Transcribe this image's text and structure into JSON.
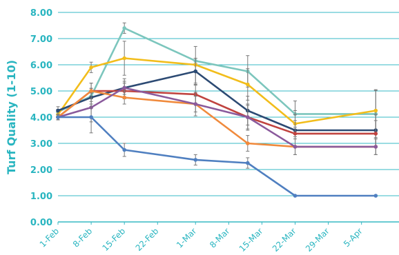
{
  "chart_data": {
    "type": "line",
    "title": "",
    "xlabel": "",
    "ylabel": "Turf Quality (1-10)",
    "ylim": [
      0,
      8
    ],
    "y_ticks": [
      "0.00",
      "1.00",
      "2.00",
      "3.00",
      "4.00",
      "5.00",
      "6.00",
      "7.00",
      "8.00"
    ],
    "grid": true,
    "legend": "none",
    "categories": [
      "1-Feb",
      "8-Feb",
      "15-Feb",
      "22-Feb",
      "1-Mar",
      "8-Mar",
      "15-Mar",
      "22-Mar",
      "29-Mar",
      "5-Apr"
    ],
    "series": [
      {
        "color": "#7cc6bd",
        "points": [
          [
            "1-Feb",
            4.2
          ],
          [
            "8-Feb",
            4.8
          ],
          [
            "15-Feb",
            7.4
          ],
          [
            "1-Mar",
            6.15
          ],
          [
            "12-Mar",
            5.75
          ],
          [
            "22-Mar",
            4.12
          ],
          [
            "8-Apr",
            4.12
          ]
        ],
        "errors": [
          0.1,
          0.3,
          0.2,
          0.1,
          0.6,
          0.5,
          0.9
        ]
      },
      {
        "color": "#f2bd1b",
        "points": [
          [
            "1-Feb",
            4.1
          ],
          [
            "8-Feb",
            5.9
          ],
          [
            "15-Feb",
            6.25
          ],
          [
            "1-Mar",
            6.0
          ],
          [
            "12-Mar",
            5.25
          ],
          [
            "22-Mar",
            3.75
          ],
          [
            "8-Apr",
            4.25
          ]
        ],
        "errors": [
          0.1,
          0.2,
          0.65,
          0.7,
          0.6,
          0.5,
          0.8
        ]
      },
      {
        "color": "#2c4a73",
        "points": [
          [
            "1-Feb",
            4.25
          ],
          [
            "8-Feb",
            4.75
          ],
          [
            "15-Feb",
            5.12
          ],
          [
            "1-Mar",
            5.75
          ],
          [
            "12-Mar",
            4.25
          ],
          [
            "22-Mar",
            3.5
          ],
          [
            "8-Apr",
            3.5
          ]
        ],
        "errors": [
          0.15,
          0.35,
          0.35,
          0.5,
          0.55,
          0.6,
          0.6
        ]
      },
      {
        "color": "#c0433f",
        "points": [
          [
            "1-Feb",
            4.0
          ],
          [
            "8-Feb",
            5.0
          ],
          [
            "15-Feb",
            5.0
          ],
          [
            "1-Mar",
            4.87
          ],
          [
            "12-Mar",
            4.0
          ],
          [
            "22-Mar",
            3.37
          ],
          [
            "8-Apr",
            3.37
          ]
        ],
        "errors": [
          0.1,
          0.3,
          0.3,
          0.35,
          0.45,
          0.5,
          0.5
        ]
      },
      {
        "color": "#f08a3c",
        "points": [
          [
            "1-Feb",
            4.0
          ],
          [
            "8-Feb",
            5.0
          ],
          [
            "15-Feb",
            4.75
          ],
          [
            "1-Mar",
            4.5
          ],
          [
            "12-Mar",
            3.0
          ],
          [
            "22-Mar",
            2.87
          ],
          [
            "8-Apr",
            2.87
          ]
        ],
        "errors": [
          0.1,
          0.3,
          0.25,
          0.45,
          0.3,
          0.3,
          0.3
        ]
      },
      {
        "color": "#8a5a9c",
        "points": [
          [
            "1-Feb",
            4.0
          ],
          [
            "8-Feb",
            4.37
          ],
          [
            "15-Feb",
            5.12
          ],
          [
            "1-Mar",
            4.5
          ],
          [
            "12-Mar",
            4.0
          ],
          [
            "22-Mar",
            2.87
          ],
          [
            "8-Apr",
            2.87
          ]
        ],
        "errors": [
          0.1,
          0.55,
          0.25,
          0.3,
          0.5,
          0.3,
          0.3
        ]
      },
      {
        "color": "#4f7fc0",
        "points": [
          [
            "1-Feb",
            4.0
          ],
          [
            "8-Feb",
            4.0
          ],
          [
            "15-Feb",
            2.75
          ],
          [
            "1-Mar",
            2.37
          ],
          [
            "12-Mar",
            2.25
          ],
          [
            "22-Mar",
            1.0
          ],
          [
            "8-Apr",
            1.0
          ]
        ],
        "errors": [
          0.1,
          0.6,
          0.25,
          0.2,
          0.2,
          0.0,
          0.0
        ]
      }
    ]
  },
  "colors": {
    "axis_text": "#29b5c0",
    "grid": "#36b8c4"
  }
}
